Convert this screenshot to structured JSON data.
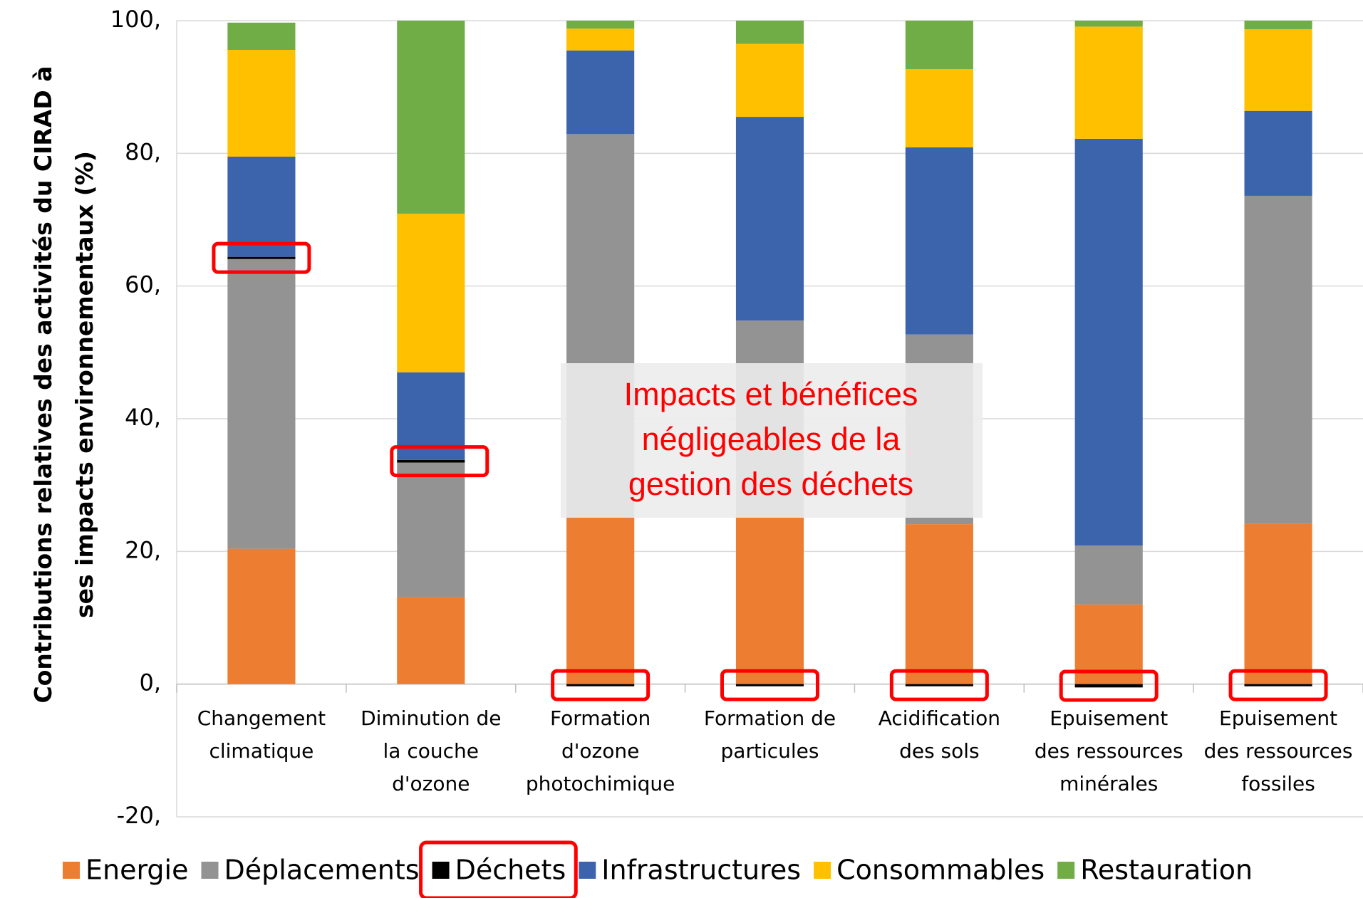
{
  "chart_data": {
    "type": "stacked_bar",
    "y_label": [
      "Contributions relatives des activités du CIRAD à",
      "ses impacts environnementaux (%)"
    ],
    "annotation": [
      "Impacts et bénéfices",
      "négligeables de la",
      "gestion des déchets"
    ],
    "categories": [
      [
        "Changement",
        "climatique"
      ],
      [
        "Diminution de",
        "la couche",
        "d'ozone"
      ],
      [
        "Formation",
        "d'ozone",
        "photochimique"
      ],
      [
        "Formation de",
        "particules"
      ],
      [
        "Acidification",
        "des sols"
      ],
      [
        "Epuisement",
        "des ressources",
        "minérales"
      ],
      [
        "Epuisement",
        "des ressources",
        "fossiles"
      ]
    ],
    "series": [
      {
        "name": "Energie",
        "color": "#ed7d31",
        "values": [
          20.4,
          13.1,
          25.3,
          25.3,
          24.1,
          12.0,
          24.2
        ]
      },
      {
        "name": "Déplacements",
        "color": "#939393",
        "values": [
          43.7,
          20.3,
          57.6,
          29.5,
          28.6,
          8.9,
          49.4
        ]
      },
      {
        "name": "Déchets",
        "color": "#000000",
        "values": [
          0.3,
          0.4,
          -0.3,
          -0.3,
          -0.2,
          -0.5,
          -0.2
        ]
      },
      {
        "name": "Infrastructures",
        "color": "#3c64ac",
        "values": [
          15.1,
          13.2,
          12.6,
          30.7,
          28.2,
          61.3,
          12.8
        ]
      },
      {
        "name": "Consommables",
        "color": "#ffc000",
        "values": [
          16.1,
          23.9,
          3.3,
          11.0,
          11.8,
          16.9,
          12.3
        ]
      },
      {
        "name": "Restauration",
        "color": "#70ad47",
        "values": [
          4.1,
          29.1,
          1.2,
          3.5,
          7.3,
          0.9,
          1.3
        ]
      }
    ],
    "ylim": [
      -20,
      100
    ],
    "yticks": [
      {
        "value": -20,
        "label": "-20,"
      },
      {
        "value": 0,
        "label": "0,"
      },
      {
        "value": 20,
        "label": "20,"
      },
      {
        "value": 40,
        "label": "40,"
      },
      {
        "value": 60,
        "label": "60,"
      },
      {
        "value": 80,
        "label": "80,"
      },
      {
        "value": 100,
        "label": "100,"
      }
    ],
    "grid": true,
    "legend": "bottom"
  }
}
